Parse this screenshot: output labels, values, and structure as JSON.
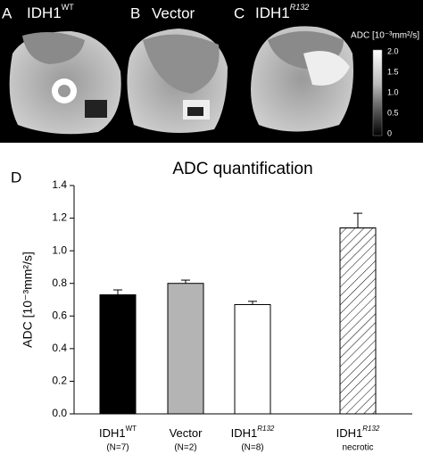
{
  "panels": [
    {
      "letter": "A",
      "name": "IDH1",
      "sup": "WT"
    },
    {
      "letter": "B",
      "name": "Vector"
    },
    {
      "letter": "C",
      "name": "IDH1",
      "sup": "R132"
    }
  ],
  "colorbar": {
    "label": "ADC [10⁻³mm²/s]",
    "ticks": [
      "2.0",
      "1.5",
      "1.0",
      "0.5",
      "0"
    ]
  },
  "chart_data": {
    "type": "bar",
    "panel": "D",
    "title": "ADC quantification",
    "y_label": "ADC [10⁻³mm²/s]",
    "categories": [
      {
        "name": "IDH1",
        "sup": "WT",
        "n": "(N=7)"
      },
      {
        "name": "Vector",
        "n": "(N=2)"
      },
      {
        "name": "IDH1",
        "sup": "R132",
        "n": "(N=8)"
      },
      {
        "name": "IDH1",
        "sup": "R132",
        "n": "necrotic"
      }
    ],
    "values": [
      0.73,
      0.8,
      0.67,
      1.14
    ],
    "errors": [
      0.03,
      0.02,
      0.02,
      0.09
    ],
    "fills": [
      "#000000",
      "#b4b4b4",
      "#ffffff",
      "#ffffff"
    ],
    "hatched": [
      false,
      false,
      false,
      true
    ],
    "ylim": [
      0,
      1.4
    ],
    "yticks": [
      {
        "value": 0,
        "label": "0.0"
      },
      0.2,
      0.4,
      0.6,
      0.8,
      {
        "value": 1,
        "label": "1.0"
      },
      1.2,
      1.4
    ]
  }
}
